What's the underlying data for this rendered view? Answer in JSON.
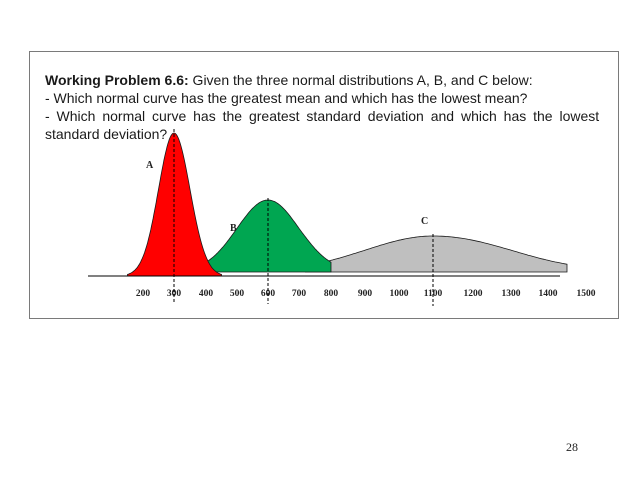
{
  "problem": {
    "title_bold": "Working Problem 6.6:",
    "title_rest": " Given the three normal distributions A, B, and C below:",
    "question_1": "- Which normal curve has the greatest mean and which has the lowest mean?",
    "question_2": "- Which normal curve has the greatest standard deviation and which has the lowest",
    "question_2_cont": "standard deviation?"
  },
  "page_number": "28",
  "colors": {
    "curve_a": "#ff0000",
    "curve_b": "#00a651",
    "curve_c": "#bfbfbf",
    "axis": "#000000"
  },
  "chart_data": {
    "type": "area",
    "x_ticks": [
      "200",
      "300",
      "400",
      "500",
      "600",
      "700",
      "800",
      "900",
      "1000",
      "1100",
      "1200",
      "1300",
      "1400",
      "1500"
    ],
    "xlim": [
      80,
      1500
    ],
    "series": [
      {
        "name": "A",
        "mean": 300,
        "sd": 50,
        "x_start": 150,
        "x_end": 450,
        "color": "#ff0000"
      },
      {
        "name": "B",
        "mean": 600,
        "sd": 100,
        "x_start": 370,
        "x_end": 800,
        "color": "#00a651"
      },
      {
        "name": "C",
        "mean": 1100,
        "sd": 200,
        "x_start": 720,
        "x_end": 1450,
        "color": "#bfbfbf"
      }
    ],
    "mean_lines": true,
    "grid": false
  }
}
